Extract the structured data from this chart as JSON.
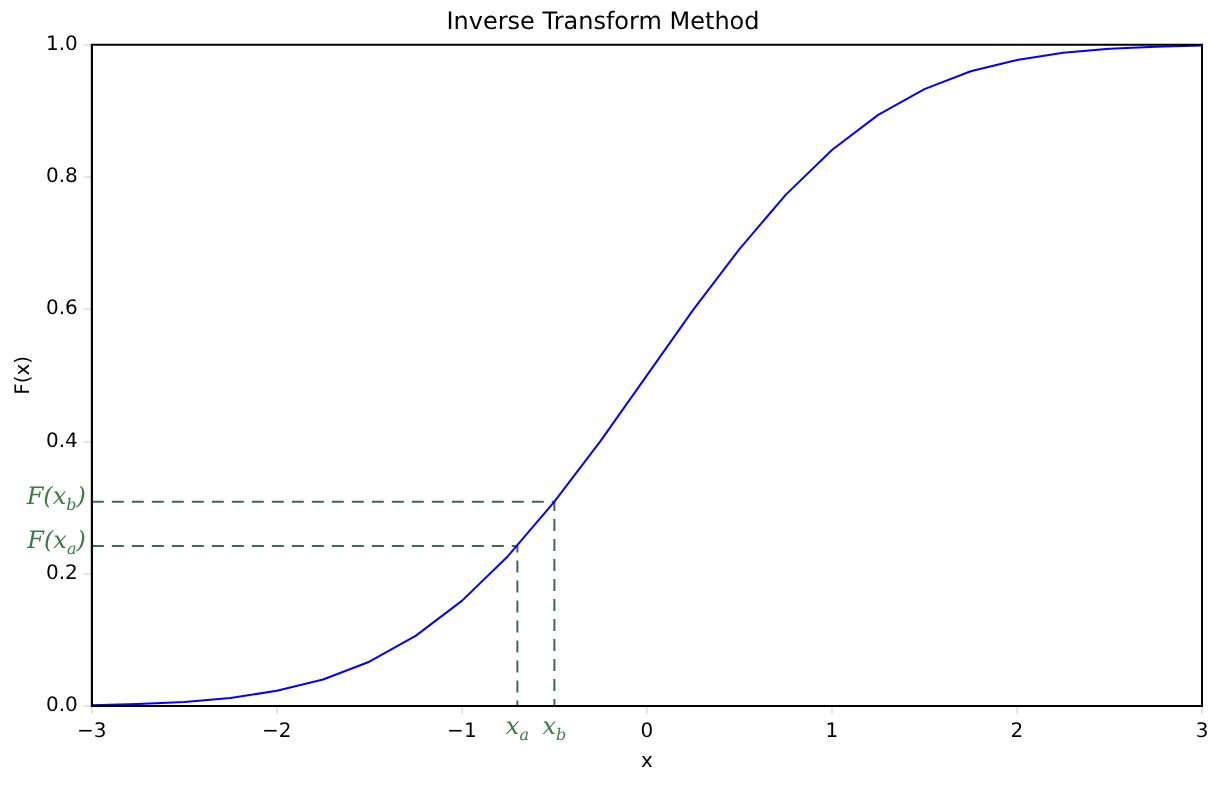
{
  "chart_data": {
    "type": "line",
    "title": "Inverse Transform Method",
    "xlabel": "x",
    "ylabel": "F(x)",
    "xlim": [
      -3,
      3
    ],
    "ylim": [
      0,
      1
    ],
    "xticks": [
      {
        "value": -3,
        "label": "−3"
      },
      {
        "value": -2,
        "label": "−2"
      },
      {
        "value": -1,
        "label": "−1"
      },
      {
        "value": 0,
        "label": "0"
      },
      {
        "value": 1,
        "label": "1"
      },
      {
        "value": 2,
        "label": "2"
      },
      {
        "value": 3,
        "label": "3"
      }
    ],
    "yticks": [
      {
        "value": 0,
        "label": "0.0"
      },
      {
        "value": 0.2,
        "label": "0.2"
      },
      {
        "value": 0.4,
        "label": "0.4"
      },
      {
        "value": 0.6,
        "label": "0.6"
      },
      {
        "value": 0.8,
        "label": "0.8"
      },
      {
        "value": 1,
        "label": "1.0"
      }
    ],
    "grid": false,
    "legend": false,
    "marker": "none",
    "series": [
      {
        "color": "#0000ff",
        "line_style": "solid",
        "x": [
          -3,
          -2.75,
          -2.5,
          -2.25,
          -2,
          -1.75,
          -1.5,
          -1.25,
          -1,
          -0.75,
          -0.5,
          -0.25,
          0,
          0.25,
          0.5,
          0.75,
          1,
          1.25,
          1.5,
          1.75,
          2,
          2.25,
          2.5,
          2.75,
          3
        ],
        "values": [
          0.001,
          0.003,
          0.006,
          0.012,
          0.023,
          0.04,
          0.067,
          0.106,
          0.159,
          0.227,
          0.309,
          0.401,
          0.5,
          0.599,
          0.691,
          0.773,
          0.841,
          0.894,
          0.933,
          0.96,
          0.977,
          0.988,
          0.994,
          0.997,
          0.999
        ]
      },
      {
        "color": "#3d6b4f",
        "line_style": "dashed",
        "x": [
          -3,
          -0.7,
          -0.7
        ],
        "values": [
          0.242,
          0.242,
          0
        ]
      },
      {
        "color": "#3d6b4f",
        "line_style": "dashed",
        "x": [
          -3,
          -0.5,
          -0.5
        ],
        "values": [
          0.309,
          0.309,
          0
        ]
      }
    ],
    "annotations": [
      {
        "text": "F(x$_{a}$)",
        "x": -3,
        "y": 0.242
      },
      {
        "text": "F(x$_{b}$)",
        "x": -3,
        "y": 0.309
      },
      {
        "text": "x$_{a}$",
        "x": -0.7,
        "y": 0
      },
      {
        "text": "x$_{b}$",
        "x": -0.5,
        "y": 0
      }
    ]
  }
}
